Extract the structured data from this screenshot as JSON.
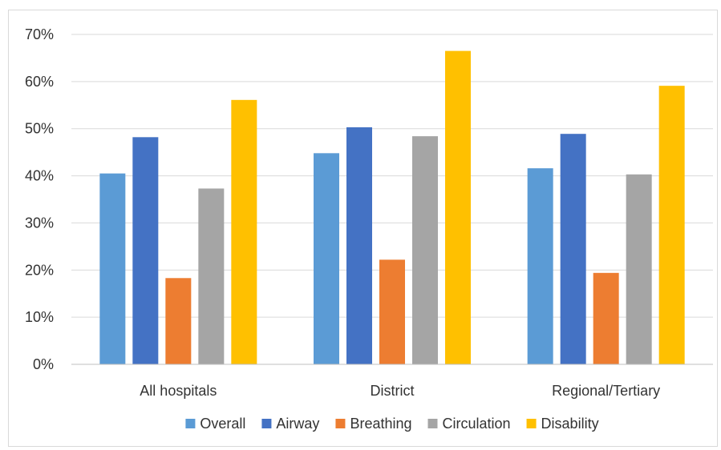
{
  "chart_data": {
    "type": "bar",
    "title": "",
    "xlabel": "",
    "ylabel": "",
    "categories": [
      "All hospitals",
      "District",
      "Regional/Tertiary"
    ],
    "ylim": [
      0,
      70
    ],
    "yticks": [
      "0%",
      "10%",
      "20%",
      "30%",
      "40%",
      "50%",
      "60%",
      "70%"
    ],
    "ytick_values": [
      0,
      10,
      20,
      30,
      40,
      50,
      60,
      70
    ],
    "grid": true,
    "legend_position": "bottom",
    "series": [
      {
        "name": "Overall",
        "color": "#5b9bd5",
        "values": [
          40.5,
          44.8,
          41.6
        ]
      },
      {
        "name": "Airway",
        "color": "#4472c4",
        "values": [
          48.2,
          50.3,
          48.9
        ]
      },
      {
        "name": "Breathing",
        "color": "#ed7d31",
        "values": [
          18.3,
          22.2,
          19.4
        ]
      },
      {
        "name": "Circulation",
        "color": "#a5a5a5",
        "values": [
          37.3,
          48.4,
          40.3
        ]
      },
      {
        "name": "Disability",
        "color": "#ffc000",
        "values": [
          56.1,
          66.5,
          59.1
        ]
      }
    ]
  }
}
